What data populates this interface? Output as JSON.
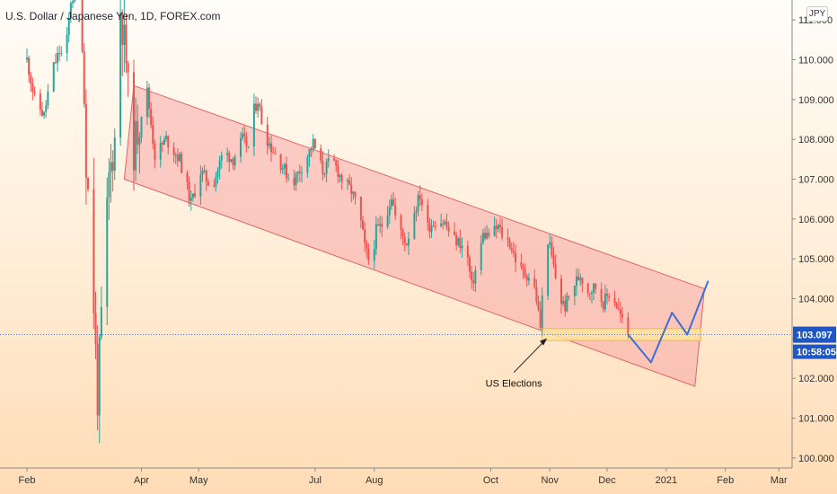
{
  "header": {
    "title": "U.S. Dollar / Japanese Yen, 1D, FOREX.com",
    "scale_label": "JPY"
  },
  "colors": {
    "up": "#26a69a",
    "down": "#ef5350",
    "channel_fill": "#f7a8a8",
    "channel_stroke": "#e06666",
    "zone_fill": "#ffe3a0",
    "zone_stroke": "#e8b84a",
    "projection": "#3d6fd8",
    "price_tag": "#1e57c4"
  },
  "chart_data": {
    "type": "candlestick",
    "title": "U.S. Dollar / Japanese Yen, 1D, FOREX.com",
    "ylim": [
      99.75,
      111.5
    ],
    "yticks": [
      "100.000",
      "101.000",
      "102.000",
      "103.000",
      "104.000",
      "105.000",
      "106.000",
      "107.000",
      "108.000",
      "109.000",
      "110.000",
      "111.000"
    ],
    "xticks": [
      {
        "label": "Feb",
        "day": 0
      },
      {
        "label": "Apr",
        "day": 60
      },
      {
        "label": "May",
        "day": 90
      },
      {
        "label": "Jul",
        "day": 151
      },
      {
        "label": "Aug",
        "day": 182
      },
      {
        "label": "Oct",
        "day": 243
      },
      {
        "label": "Nov",
        "day": 274
      },
      {
        "label": "Dec",
        "day": 304
      },
      {
        "label": "2021",
        "day": 335
      },
      {
        "label": "Feb",
        "day": 366
      },
      {
        "label": "Mar",
        "day": 394
      }
    ],
    "last_price": "103.097",
    "countdown": "10:58:05",
    "channel": {
      "upper": [
        [
          56,
          109.35
        ],
        [
          355,
          104.25
        ]
      ],
      "lower": [
        [
          51,
          107.0
        ],
        [
          350,
          101.8
        ]
      ]
    },
    "zone": {
      "from_day": 270,
      "to_day": 353,
      "low": 102.95,
      "high": 103.25
    },
    "projection_path": [
      [
        315,
        103.1
      ],
      [
        327,
        102.4
      ],
      [
        338,
        103.65
      ],
      [
        346,
        103.1
      ],
      [
        357,
        104.45
      ]
    ],
    "annotation": {
      "text": "US Elections",
      "day": 273,
      "price": 103.05
    },
    "anchors": [
      [
        0,
        110.0
      ],
      [
        4,
        109.0
      ],
      [
        9,
        108.6
      ],
      [
        13,
        109.7
      ],
      [
        17,
        110.2
      ],
      [
        20,
        110.0
      ],
      [
        23,
        111.5
      ],
      [
        28,
        111.8
      ],
      [
        31,
        107.5
      ],
      [
        34,
        105.0
      ],
      [
        37,
        101.5
      ],
      [
        40,
        104.5
      ],
      [
        43,
        107.0
      ],
      [
        46,
        108.0
      ],
      [
        49,
        111.3
      ],
      [
        52,
        110.0
      ],
      [
        55,
        107.5
      ],
      [
        59,
        108.5
      ],
      [
        63,
        109.2
      ],
      [
        67,
        107.6
      ],
      [
        73,
        108.0
      ],
      [
        80,
        107.5
      ],
      [
        86,
        106.4
      ],
      [
        91,
        107.2
      ],
      [
        97,
        106.8
      ],
      [
        103,
        107.7
      ],
      [
        108,
        107.5
      ],
      [
        113,
        108.0
      ],
      [
        116,
        107.8
      ],
      [
        118,
        108.6
      ],
      [
        121,
        109.0
      ],
      [
        124,
        108.2
      ],
      [
        128,
        107.8
      ],
      [
        133,
        107.4
      ],
      [
        139,
        106.9
      ],
      [
        145,
        107.4
      ],
      [
        150,
        107.9
      ],
      [
        155,
        107.2
      ],
      [
        160,
        107.5
      ],
      [
        165,
        107.0
      ],
      [
        170,
        106.7
      ],
      [
        174,
        106.2
      ],
      [
        177,
        105.3
      ],
      [
        180,
        104.8
      ],
      [
        183,
        105.7
      ],
      [
        187,
        105.9
      ],
      [
        191,
        106.6
      ],
      [
        194,
        105.8
      ],
      [
        199,
        105.4
      ],
      [
        203,
        106.2
      ],
      [
        206,
        106.6
      ],
      [
        210,
        105.8
      ],
      [
        215,
        106.0
      ],
      [
        219,
        105.9
      ],
      [
        223,
        105.5
      ],
      [
        227,
        105.4
      ],
      [
        231,
        105.0
      ],
      [
        233,
        104.3
      ],
      [
        236,
        104.9
      ],
      [
        239,
        105.6
      ],
      [
        243,
        105.6
      ],
      [
        247,
        105.8
      ],
      [
        250,
        105.5
      ],
      [
        253,
        105.4
      ],
      [
        256,
        105.0
      ],
      [
        259,
        104.7
      ],
      [
        262,
        104.6
      ],
      [
        265,
        104.5
      ],
      [
        267,
        104.0
      ],
      [
        269,
        103.3
      ],
      [
        271,
        104.7
      ],
      [
        273,
        105.5
      ],
      [
        276,
        104.8
      ],
      [
        279,
        104.0
      ],
      [
        282,
        103.8
      ],
      [
        286,
        104.3
      ],
      [
        290,
        104.6
      ],
      [
        294,
        104.2
      ],
      [
        298,
        104.3
      ],
      [
        302,
        103.9
      ],
      [
        306,
        104.2
      ],
      [
        310,
        103.7
      ],
      [
        313,
        103.3
      ],
      [
        315,
        103.1
      ]
    ]
  }
}
